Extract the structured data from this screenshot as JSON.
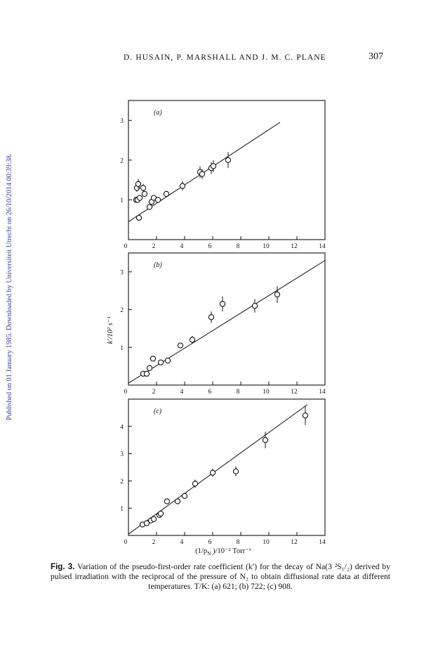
{
  "header": {
    "running_head": "D. HUSAIN, P. MARSHALL AND J. M. C. PLANE",
    "page_number": "307"
  },
  "sidebar_note": "Published on 01 January 1985. Downloaded by Universiteit Utrecht on 26/10/2014 00:39:38.",
  "figure": {
    "x_axis_label": "(1/p",
    "x_axis_label_sub": "N₂",
    "x_axis_label_rest": ")/10⁻² Torr⁻¹",
    "y_axis_label": "k′/10² s⁻¹"
  },
  "chart_data": [
    {
      "type": "scatter",
      "panel_label": "(a)",
      "xlim": [
        0,
        14
      ],
      "ylim": [
        0,
        3.5
      ],
      "xticks": [
        "0",
        "2",
        "4",
        "6",
        "8",
        "10",
        "12",
        "14"
      ],
      "yticks": [
        "1",
        "2",
        "3"
      ],
      "points": [
        {
          "x": 0.75,
          "y": 0.55
        },
        {
          "x": 0.55,
          "y": 1.0
        },
        {
          "x": 0.65,
          "y": 1.0
        },
        {
          "x": 0.8,
          "y": 1.05
        },
        {
          "x": 0.6,
          "y": 1.3,
          "err": 0.1
        },
        {
          "x": 0.7,
          "y": 1.4,
          "err": 0.12
        },
        {
          "x": 1.15,
          "y": 1.15
        },
        {
          "x": 1.05,
          "y": 1.3,
          "err": 0.1
        },
        {
          "x": 1.5,
          "y": 0.82
        },
        {
          "x": 1.65,
          "y": 0.95
        },
        {
          "x": 1.8,
          "y": 1.05
        },
        {
          "x": 2.1,
          "y": 1.0
        },
        {
          "x": 2.7,
          "y": 1.15,
          "err": 0.08
        },
        {
          "x": 3.85,
          "y": 1.35,
          "err": 0.12
        },
        {
          "x": 5.1,
          "y": 1.7,
          "err": 0.15
        },
        {
          "x": 5.25,
          "y": 1.65,
          "err": 0.12
        },
        {
          "x": 5.9,
          "y": 1.8,
          "err": 0.15
        },
        {
          "x": 6.05,
          "y": 1.85,
          "err": 0.15
        },
        {
          "x": 7.1,
          "y": 2.0,
          "err": 0.2
        }
      ],
      "fit_line": {
        "x": [
          0,
          10.8
        ],
        "y": [
          0.45,
          2.95
        ]
      }
    },
    {
      "type": "scatter",
      "panel_label": "(b)",
      "xlim": [
        0,
        14
      ],
      "ylim": [
        0,
        3.5
      ],
      "xticks": [
        "0",
        "2",
        "4",
        "6",
        "8",
        "10",
        "12",
        "14"
      ],
      "yticks": [
        "1",
        "2",
        "3"
      ],
      "points": [
        {
          "x": 1.05,
          "y": 0.3
        },
        {
          "x": 1.3,
          "y": 0.3
        },
        {
          "x": 1.5,
          "y": 0.45
        },
        {
          "x": 1.75,
          "y": 0.7
        },
        {
          "x": 2.3,
          "y": 0.6
        },
        {
          "x": 2.8,
          "y": 0.65
        },
        {
          "x": 3.7,
          "y": 1.05
        },
        {
          "x": 4.55,
          "y": 1.2,
          "err": 0.1
        },
        {
          "x": 5.9,
          "y": 1.8,
          "err": 0.15
        },
        {
          "x": 6.7,
          "y": 2.15,
          "err": 0.2
        },
        {
          "x": 9.0,
          "y": 2.1,
          "err": 0.18
        },
        {
          "x": 10.6,
          "y": 2.4,
          "err": 0.22
        }
      ],
      "fit_line": {
        "x": [
          0,
          14
        ],
        "y": [
          0.05,
          3.3
        ]
      }
    },
    {
      "type": "scatter",
      "panel_label": "(c)",
      "xlim": [
        0,
        14
      ],
      "ylim": [
        0,
        5
      ],
      "xticks": [
        "0",
        "2",
        "4",
        "6",
        "8",
        "10",
        "12",
        "14"
      ],
      "yticks": [
        "1",
        "2",
        "3",
        "4"
      ],
      "points": [
        {
          "x": 1.0,
          "y": 0.4
        },
        {
          "x": 1.3,
          "y": 0.45
        },
        {
          "x": 1.6,
          "y": 0.55
        },
        {
          "x": 1.8,
          "y": 0.6
        },
        {
          "x": 2.2,
          "y": 0.75
        },
        {
          "x": 2.3,
          "y": 0.8
        },
        {
          "x": 2.75,
          "y": 1.25,
          "err": 0.1
        },
        {
          "x": 3.5,
          "y": 1.25,
          "err": 0.1
        },
        {
          "x": 4.0,
          "y": 1.45,
          "err": 0.1
        },
        {
          "x": 4.75,
          "y": 1.9,
          "err": 0.15
        },
        {
          "x": 6.0,
          "y": 2.3,
          "err": 0.15
        },
        {
          "x": 7.65,
          "y": 2.35,
          "err": 0.18
        },
        {
          "x": 9.75,
          "y": 3.5,
          "err": 0.3
        },
        {
          "x": 12.6,
          "y": 4.4,
          "err": 0.35
        }
      ],
      "fit_line": {
        "x": [
          0,
          12.75
        ],
        "y": [
          0.05,
          4.8
        ]
      }
    }
  ],
  "caption": {
    "label": "Fig. 3.",
    "text": " Variation of the pseudo-first-order rate coefficient (k′) for the decay of Na(3 ²S₁/₂) derived by pulsed irradiation with the reciprocal of the pressure of N₂ to obtain diffusional rate data at different temperatures. T/K: (a) 621; (b) 722; (c) 908."
  }
}
